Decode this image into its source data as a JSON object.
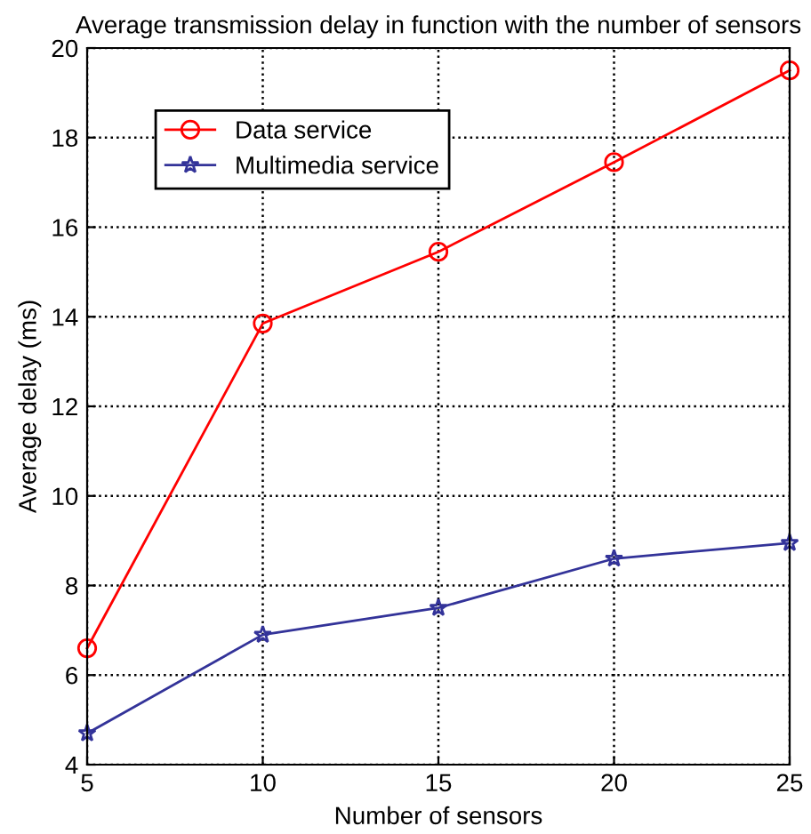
{
  "chart_data": {
    "type": "line",
    "title": "Average transmission delay in function with the number of sensors",
    "xlabel": "Number of sensors",
    "ylabel": "Average delay (ms)",
    "x": [
      5,
      10,
      15,
      20,
      25
    ],
    "series": [
      {
        "name": "Data service",
        "color": "#ff0000",
        "marker": "circle",
        "values": [
          6.6,
          13.85,
          15.45,
          17.45,
          19.5
        ]
      },
      {
        "name": "Multimedia service",
        "color": "#333399",
        "marker": "star",
        "values": [
          4.7,
          6.9,
          7.5,
          8.6,
          8.95
        ]
      }
    ],
    "xlim": [
      5,
      25
    ],
    "xticks": [
      5,
      10,
      15,
      20,
      25
    ],
    "ylim": [
      4,
      20
    ],
    "yticks": [
      4,
      6,
      8,
      10,
      12,
      14,
      16,
      18,
      20
    ],
    "grid": true,
    "legend": "top left",
    "line_style": "solid"
  }
}
